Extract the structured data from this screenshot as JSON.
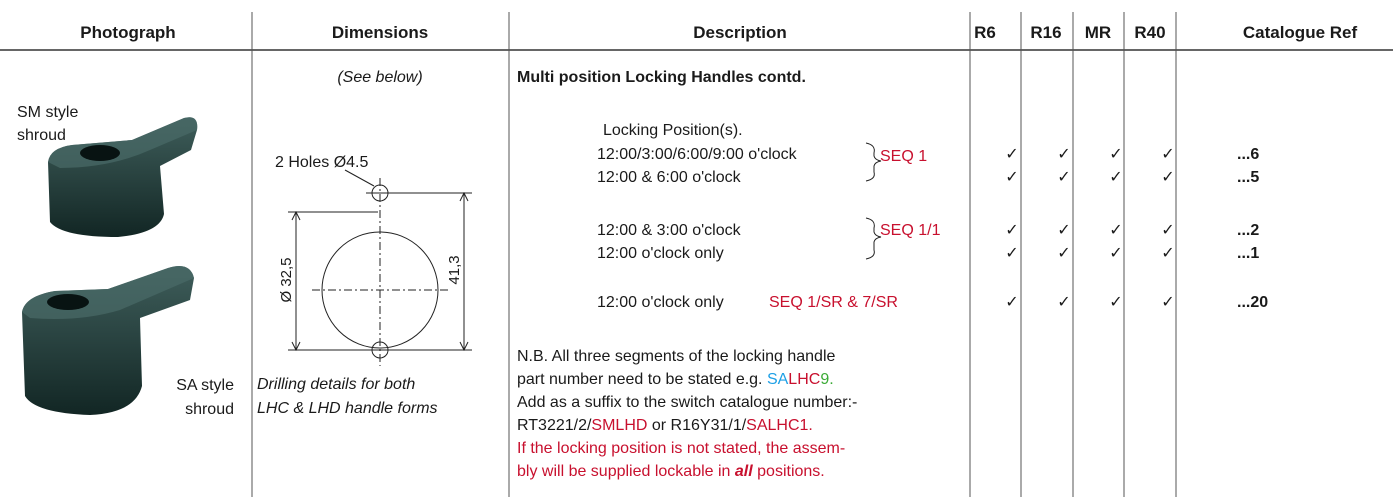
{
  "table": {
    "headers": [
      "Photograph",
      "Dimensions",
      "Description",
      "R6",
      "R16",
      "MR",
      "R40",
      "Catalogue Ref"
    ],
    "photographs": [
      {
        "label": [
          "SM style",
          "shroud"
        ]
      },
      {
        "label": [
          "SA style",
          "shroud"
        ]
      }
    ],
    "dimensions": {
      "note": "(See below)",
      "holes_label": "2 Holes Ø4.5",
      "inner_diameter": "Ø 32,5",
      "outer_span": "41,3",
      "caption": [
        "Drilling details for both",
        "LHC & LHD handle forms"
      ]
    },
    "description": {
      "title": "Multi position Locking Handles contd.",
      "heading": "Locking Position(s).",
      "rows": [
        {
          "text": "12:00/3:00/6:00/9:00 o'clock",
          "checks": [
            "✓",
            "✓",
            "✓",
            "✓"
          ],
          "ref": "...6"
        },
        {
          "text": "12:00 & 6:00 o'clock",
          "checks": [
            "✓",
            "✓",
            "✓",
            "✓"
          ],
          "ref": "...5"
        },
        {
          "text": "12:00 & 3:00 o'clock",
          "checks": [
            "✓",
            "✓",
            "✓",
            "✓"
          ],
          "ref": "...2"
        },
        {
          "text": "12:00 o'clock only",
          "checks": [
            "✓",
            "✓",
            "✓",
            "✓"
          ],
          "ref": "...1"
        },
        {
          "text": "12:00 o'clock only",
          "seq": "SEQ 1/SR & 7/SR",
          "checks": [
            "✓",
            "✓",
            "✓",
            "✓"
          ],
          "ref": "...20"
        }
      ],
      "groups": [
        {
          "label": "SEQ 1",
          "color": "#c8102e"
        },
        {
          "label": "SEQ 1/1",
          "color": "#c8102e"
        }
      ],
      "seq_color": "#c8102e",
      "note": [
        [
          {
            "text": "N.B. All three segments of the locking handle"
          }
        ],
        [
          {
            "text": "part number need to be stated e.g. "
          },
          {
            "text": "SA",
            "color": "#1ea0e6"
          },
          {
            "text": "LHC",
            "color": "#c8102e"
          },
          {
            "text": "9.",
            "color": "#3aaa35"
          }
        ],
        [
          {
            "text": "Add as a suffix to the switch catalogue number:-"
          }
        ],
        [
          {
            "text": "RT3221/2/"
          },
          {
            "text": "SMLHD",
            "color": "#c8102e"
          },
          {
            "text": " or R16Y31/1/"
          },
          {
            "text": "SALHC1.",
            "color": "#c8102e"
          }
        ],
        [
          {
            "text": "If the locking position is not stated, the assem-",
            "color": "#c8102e"
          }
        ],
        [
          {
            "text": "bly will be supplied lockable in ",
            "color": "#c8102e"
          },
          {
            "text": "all",
            "color": "#c8102e",
            "style": "bold-italic"
          },
          {
            "text": " positions.",
            "color": "#c8102e"
          }
        ]
      ]
    }
  }
}
